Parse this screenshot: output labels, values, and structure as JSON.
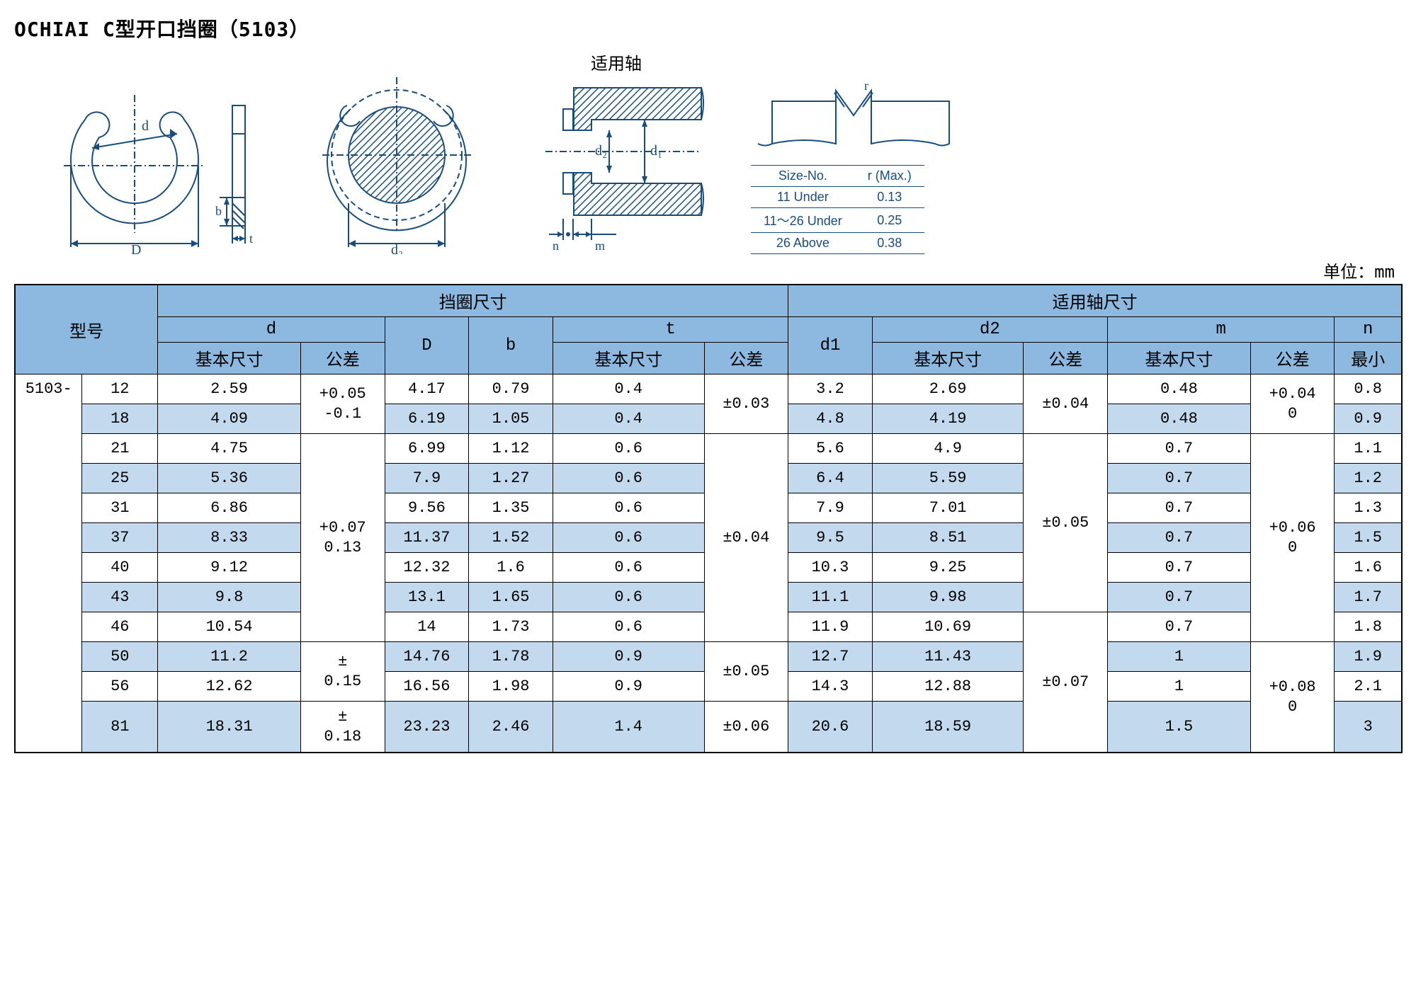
{
  "title": "OCHIAI C型开口挡圈（5103）",
  "shaft_label": "适用轴",
  "r_diagram_label": "r",
  "r_table": {
    "head": [
      "Size-No.",
      "r (Max.)"
    ],
    "rows": [
      [
        "11 Under",
        "0.13"
      ],
      [
        "11～26 Under",
        "0.25"
      ],
      [
        "26 Above",
        "0.38"
      ]
    ]
  },
  "unit_label": "单位：mm",
  "headers": {
    "model": "型号",
    "ring": "挡圈尺寸",
    "shaft": "适用轴尺寸",
    "d": "d",
    "D": "D",
    "b": "b",
    "t": "t",
    "d1": "d1",
    "d2": "d2",
    "m": "m",
    "n": "n",
    "basic": "基本尺寸",
    "tol": "公差",
    "min": "最小"
  },
  "prefix": "5103-",
  "diag_labels": {
    "d": "d",
    "D": "D",
    "b": "b",
    "t": "t",
    "d2": "d₂",
    "d1": "d₁",
    "d2b": "d₂",
    "n": "n",
    "m": "m"
  },
  "rows": [
    {
      "alt": false,
      "size": "12",
      "d_basic": "2.59",
      "D": "4.17",
      "b": "0.79",
      "t_basic": "0.4",
      "d1": "3.2",
      "d2_basic": "2.69",
      "m_basic": "0.48",
      "n_min": "0.8"
    },
    {
      "alt": true,
      "size": "18",
      "d_basic": "4.09",
      "D": "6.19",
      "b": "1.05",
      "t_basic": "0.4",
      "d1": "4.8",
      "d2_basic": "4.19",
      "m_basic": "0.48",
      "n_min": "0.9"
    },
    {
      "alt": false,
      "size": "21",
      "d_basic": "4.75",
      "D": "6.99",
      "b": "1.12",
      "t_basic": "0.6",
      "d1": "5.6",
      "d2_basic": "4.9",
      "m_basic": "0.7",
      "n_min": "1.1"
    },
    {
      "alt": true,
      "size": "25",
      "d_basic": "5.36",
      "D": "7.9",
      "b": "1.27",
      "t_basic": "0.6",
      "d1": "6.4",
      "d2_basic": "5.59",
      "m_basic": "0.7",
      "n_min": "1.2"
    },
    {
      "alt": false,
      "size": "31",
      "d_basic": "6.86",
      "D": "9.56",
      "b": "1.35",
      "t_basic": "0.6",
      "d1": "7.9",
      "d2_basic": "7.01",
      "m_basic": "0.7",
      "n_min": "1.3"
    },
    {
      "alt": true,
      "size": "37",
      "d_basic": "8.33",
      "D": "11.37",
      "b": "1.52",
      "t_basic": "0.6",
      "d1": "9.5",
      "d2_basic": "8.51",
      "m_basic": "0.7",
      "n_min": "1.5"
    },
    {
      "alt": false,
      "size": "40",
      "d_basic": "9.12",
      "D": "12.32",
      "b": "1.6",
      "t_basic": "0.6",
      "d1": "10.3",
      "d2_basic": "9.25",
      "m_basic": "0.7",
      "n_min": "1.6"
    },
    {
      "alt": true,
      "size": "43",
      "d_basic": "9.8",
      "D": "13.1",
      "b": "1.65",
      "t_basic": "0.6",
      "d1": "11.1",
      "d2_basic": "9.98",
      "m_basic": "0.7",
      "n_min": "1.7"
    },
    {
      "alt": false,
      "size": "46",
      "d_basic": "10.54",
      "D": "14",
      "b": "1.73",
      "t_basic": "0.6",
      "d1": "11.9",
      "d2_basic": "10.69",
      "m_basic": "0.7",
      "n_min": "1.8"
    },
    {
      "alt": true,
      "size": "50",
      "d_basic": "11.2",
      "D": "14.76",
      "b": "1.78",
      "t_basic": "0.9",
      "d1": "12.7",
      "d2_basic": "11.43",
      "m_basic": "1",
      "n_min": "1.9"
    },
    {
      "alt": false,
      "size": "56",
      "d_basic": "12.62",
      "D": "16.56",
      "b": "1.98",
      "t_basic": "0.9",
      "d1": "14.3",
      "d2_basic": "12.88",
      "m_basic": "1",
      "n_min": "2.1"
    },
    {
      "alt": true,
      "size": "81",
      "d_basic": "18.31",
      "D": "23.23",
      "b": "2.46",
      "t_basic": "1.4",
      "d1": "20.6",
      "d2_basic": "18.59",
      "m_basic": "1.5",
      "n_min": "3"
    }
  ],
  "tol": {
    "d_1": {
      "l1": "+0.05",
      "l2": "-0.1"
    },
    "d_2": {
      "l1": "+0.07",
      "l2": "0.13"
    },
    "d_3": {
      "l1": "±",
      "l2": "0.15"
    },
    "d_4": {
      "l1": "±",
      "l2": "0.18"
    },
    "t_1": "±0.03",
    "t_2": "±0.04",
    "t_3": "±0.05",
    "t_4": "±0.06",
    "d2_1": "±0.04",
    "d2_2": "±0.05",
    "d2_3": "±0.07",
    "m_1": {
      "l1": "+0.04",
      "l2": "0"
    },
    "m_2": {
      "l1": "+0.06",
      "l2": "0"
    },
    "m_3": {
      "l1": "+0.08",
      "l2": "0"
    }
  },
  "colors": {
    "header_bg": "#8db8df",
    "alt_bg": "#c3d9ee",
    "border": "#000000",
    "rtable": "#1a4d7a"
  }
}
